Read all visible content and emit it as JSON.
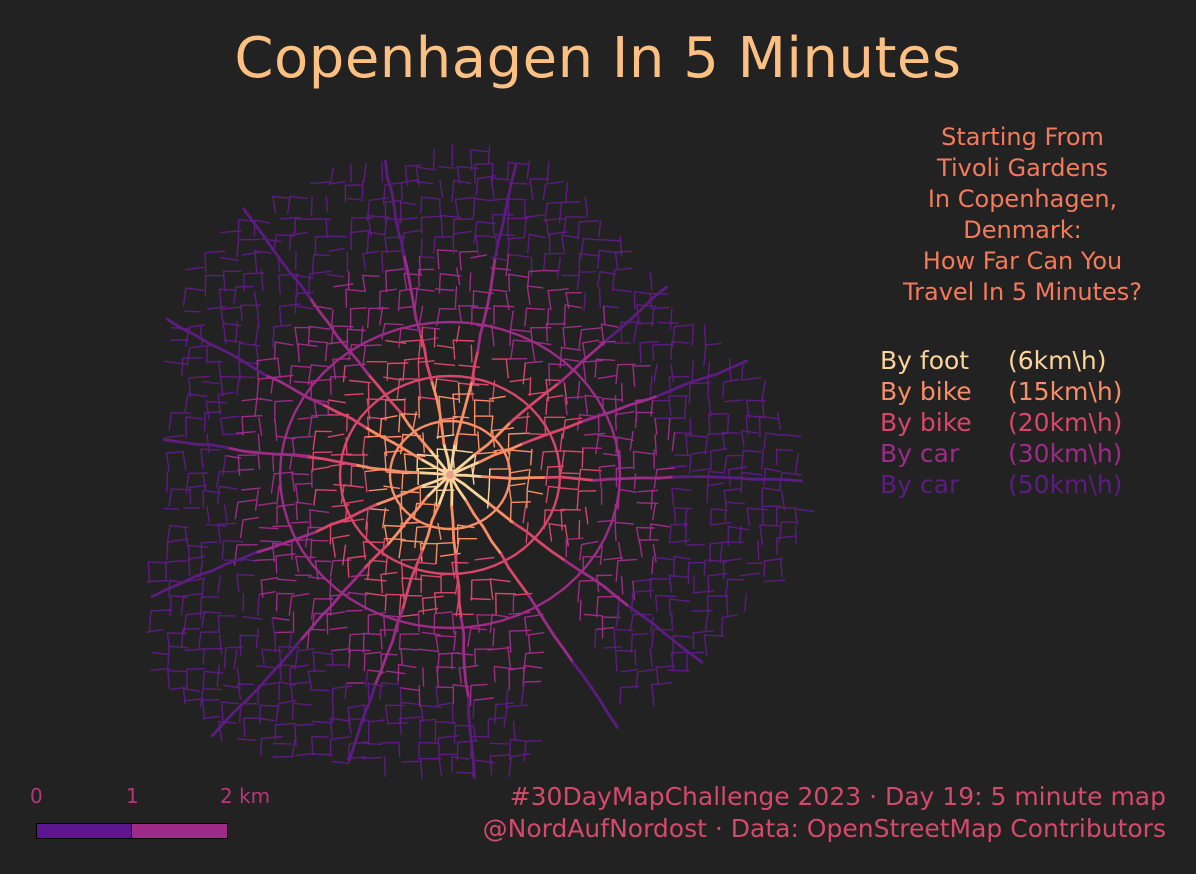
{
  "title": "Copenhagen In 5 Minutes",
  "intro_lines": [
    "Starting From",
    "Tivoli Gardens",
    "In Copenhagen,",
    "Denmark:",
    "How Far Can You",
    "Travel In 5 Minutes?"
  ],
  "legend": [
    {
      "mode": "By foot",
      "speed": "(6km\\h)",
      "color": "#fcd39a"
    },
    {
      "mode": "By bike",
      "speed": "(15km\\h)",
      "color": "#f98e66"
    },
    {
      "mode": "By bike",
      "speed": "(20km\\h)",
      "color": "#d8466b"
    },
    {
      "mode": "By car",
      "speed": "(30km\\h)",
      "color": "#9c2c87"
    },
    {
      "mode": "By car",
      "speed": "(50km\\h)",
      "color": "#5c1c80"
    }
  ],
  "scale_bar": {
    "labels": [
      "0",
      "1",
      "2 km"
    ],
    "colors": [
      "#5c1690",
      "#9e2b85"
    ]
  },
  "credits": [
    "#30DayMapChallenge 2023 · Day 19: 5 minute map",
    "@NordAufNordost · Data: OpenStreetMap Contributors"
  ],
  "map": {
    "start_point": "Tivoli Gardens",
    "colors": {
      "foot": "#fcd39a",
      "bike15": "#f98e66",
      "bike20": "#d8466b",
      "car30": "#9c2c87",
      "car50": "#5c1c80"
    }
  }
}
